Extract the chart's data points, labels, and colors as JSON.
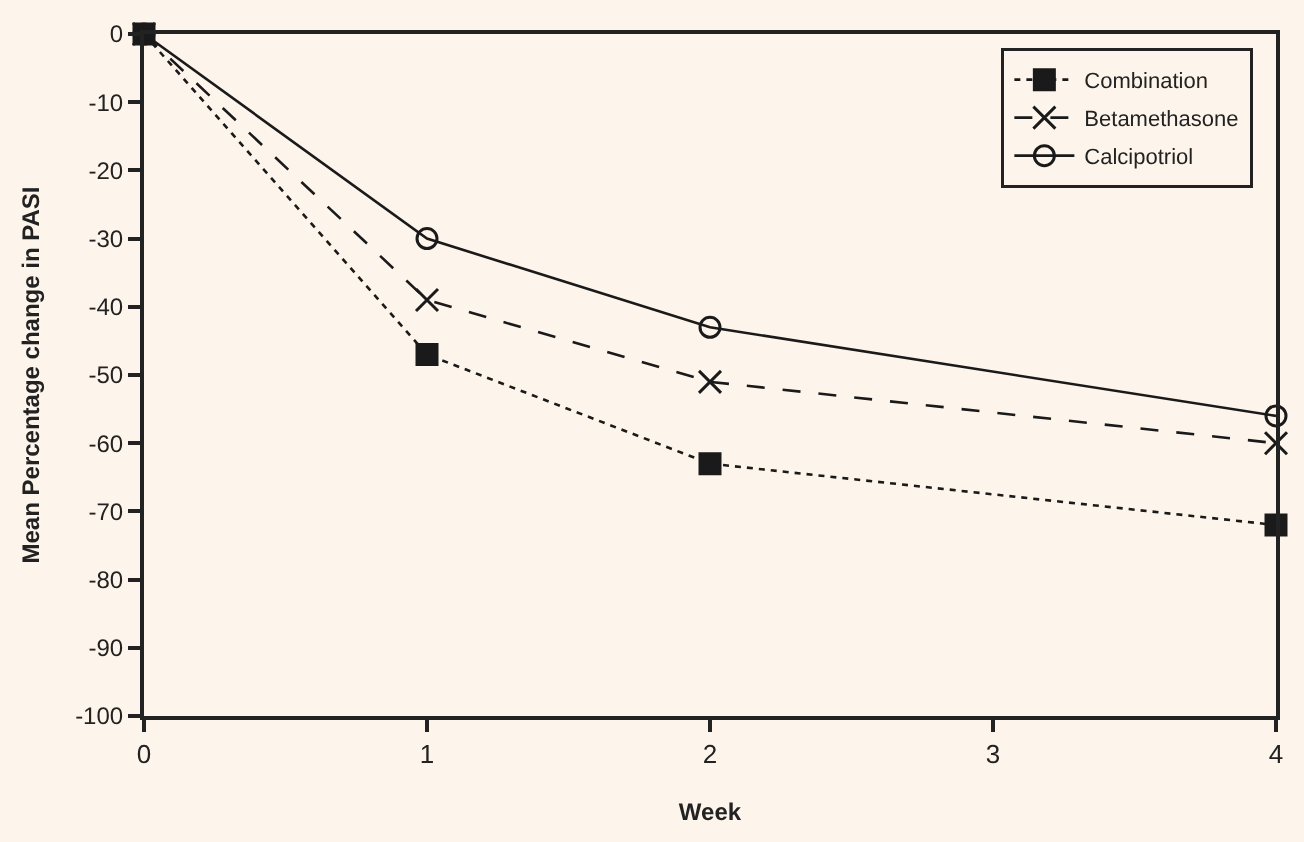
{
  "chart_data": {
    "type": "line",
    "xlabel": "Week",
    "ylabel": "Mean Percentage change in PASI",
    "x": [
      0,
      1,
      2,
      4
    ],
    "series": [
      {
        "name": "Combination",
        "color": "#1a1a1a",
        "marker": "square",
        "line_style": "dotted",
        "values": [
          0,
          -47,
          -63,
          -72
        ]
      },
      {
        "name": "Betamethasone",
        "color": "#1a1a1a",
        "marker": "cross",
        "line_style": "dashed",
        "values": [
          0,
          -39,
          -51,
          -60
        ]
      },
      {
        "name": "Calcipotriol",
        "color": "#1a1a1a",
        "marker": "circle",
        "line_style": "solid",
        "values": [
          0,
          -30,
          -43,
          -56
        ]
      }
    ],
    "xlim": [
      0,
      4
    ],
    "xticks": [
      0,
      1,
      2,
      3,
      4
    ],
    "ylim": [
      -100,
      0
    ],
    "yticks": [
      -100,
      -90,
      -80,
      -70,
      -60,
      -50,
      -40,
      -30,
      -20,
      -10,
      0
    ],
    "grid": false,
    "legend": "top right"
  }
}
